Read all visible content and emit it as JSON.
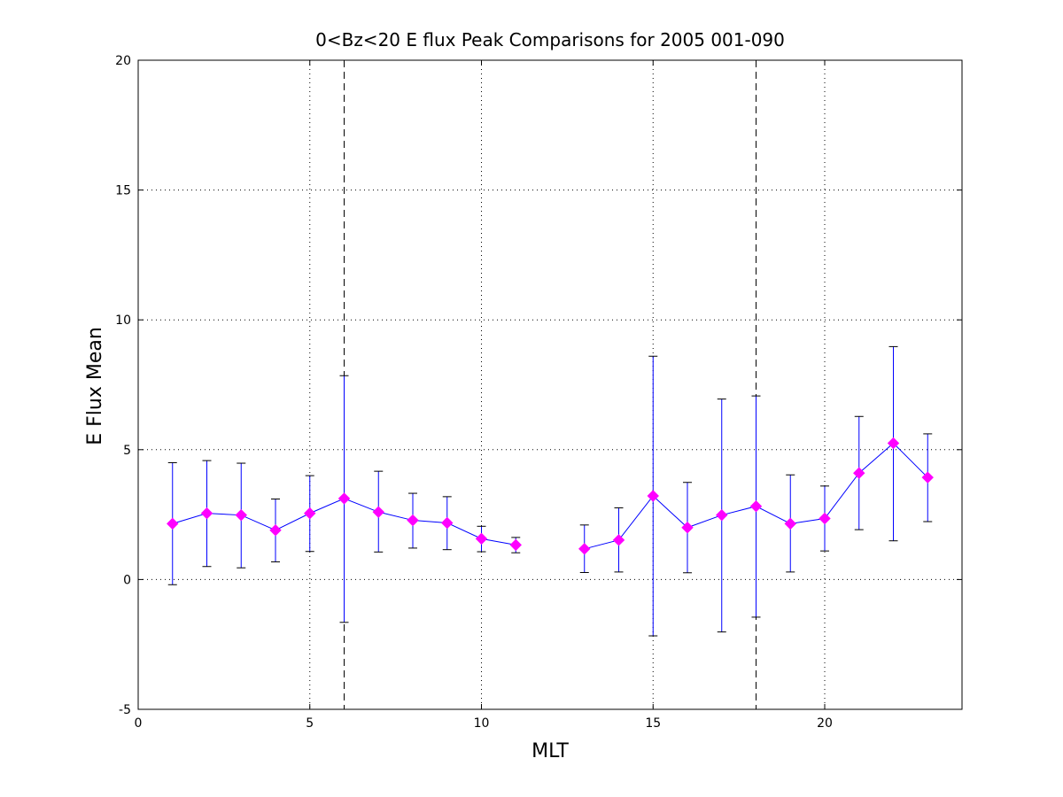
{
  "chart_data": {
    "type": "line",
    "title": "0<Bz<20 E flux Peak Comparisons for 2005 001-090",
    "xlabel": "MLT",
    "ylabel": "E Flux Mean",
    "xlim": [
      0,
      24
    ],
    "ylim": [
      -5,
      20
    ],
    "xticks": [
      0,
      5,
      10,
      15,
      20
    ],
    "yticks": [
      -5,
      0,
      5,
      10,
      15,
      20
    ],
    "grid": true,
    "grid_style": "dotted",
    "reference_lines": [
      {
        "x": 6,
        "style": "dashed"
      },
      {
        "x": 18,
        "style": "dashed"
      }
    ],
    "series": [
      {
        "line_color": "#0000ff",
        "marker_color": "#ff00ff",
        "marker": "diamond",
        "segments": [
          {
            "x": [
              1,
              2,
              3,
              4,
              5,
              6,
              7,
              8,
              9,
              10,
              11
            ],
            "y": [
              2.15,
              2.55,
              2.48,
              1.9,
              2.55,
              3.12,
              2.6,
              2.28,
              2.18,
              1.57,
              1.33
            ],
            "err_low": [
              -0.2,
              0.5,
              0.45,
              0.68,
              1.08,
              -1.65,
              1.06,
              1.21,
              1.15,
              1.07,
              1.03
            ],
            "err_high": [
              4.5,
              4.58,
              4.48,
              3.1,
              4.0,
              7.85,
              4.17,
              3.32,
              3.19,
              2.05,
              1.62
            ]
          },
          {
            "x": [
              13,
              14,
              15,
              16,
              17,
              18,
              19,
              20,
              21,
              22,
              23
            ],
            "y": [
              1.18,
              1.52,
              3.22,
              2.0,
              2.48,
              2.82,
              2.15,
              2.35,
              4.1,
              5.25,
              3.93
            ],
            "err_low": [
              0.27,
              0.29,
              -2.17,
              0.26,
              -2.02,
              -1.45,
              0.29,
              1.1,
              1.92,
              1.49,
              2.23
            ],
            "err_high": [
              2.1,
              2.76,
              8.6,
              3.74,
              6.95,
              7.07,
              4.03,
              3.6,
              6.28,
              8.97,
              5.61
            ]
          }
        ]
      }
    ]
  }
}
